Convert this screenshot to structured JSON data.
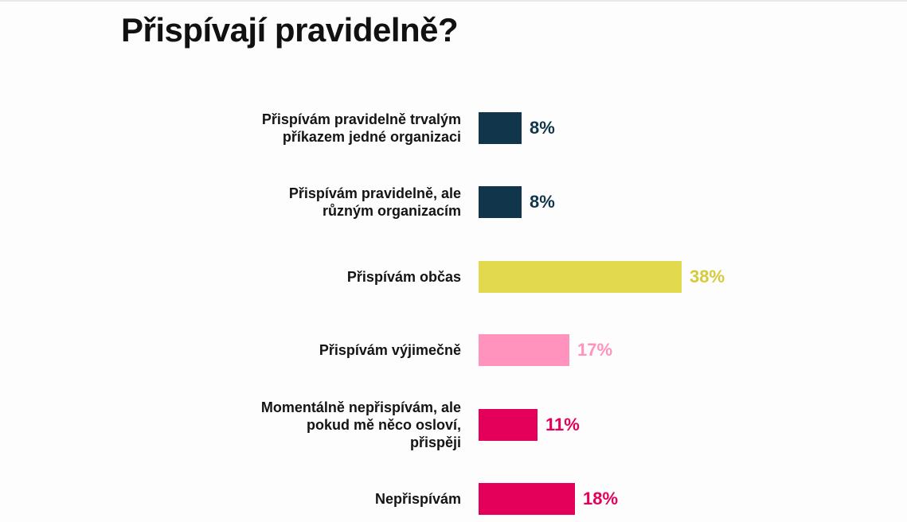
{
  "chart_data": {
    "type": "bar",
    "orientation": "horizontal",
    "title": "Přispívají pravidelně?",
    "categories": [
      "Přispívám pravidelně trvalým\npříkazem jedné organizaci",
      "Přispívám pravidelně, ale\nrůzným organizacím",
      "Přispívám občas",
      "Přispívám výjimečně",
      "Momentálně nepřispívám, ale\npokud mě něco osloví,\npřispěji",
      "Nepřispívám"
    ],
    "values": [
      8,
      8,
      38,
      17,
      11,
      18
    ],
    "value_labels": [
      "8%",
      "8%",
      "38%",
      "17%",
      "11%",
      "18%"
    ],
    "colors": [
      "#11354a",
      "#11354a",
      "#e2d94f",
      "#ff93bd",
      "#e4005a",
      "#e4005a"
    ],
    "label_colors": [
      "#11354a",
      "#11354a",
      "#d5cb3a",
      "#ff93bd",
      "#e4005a",
      "#e4005a"
    ],
    "xlabel": "",
    "ylabel": "",
    "grid": false,
    "legend": "none"
  }
}
